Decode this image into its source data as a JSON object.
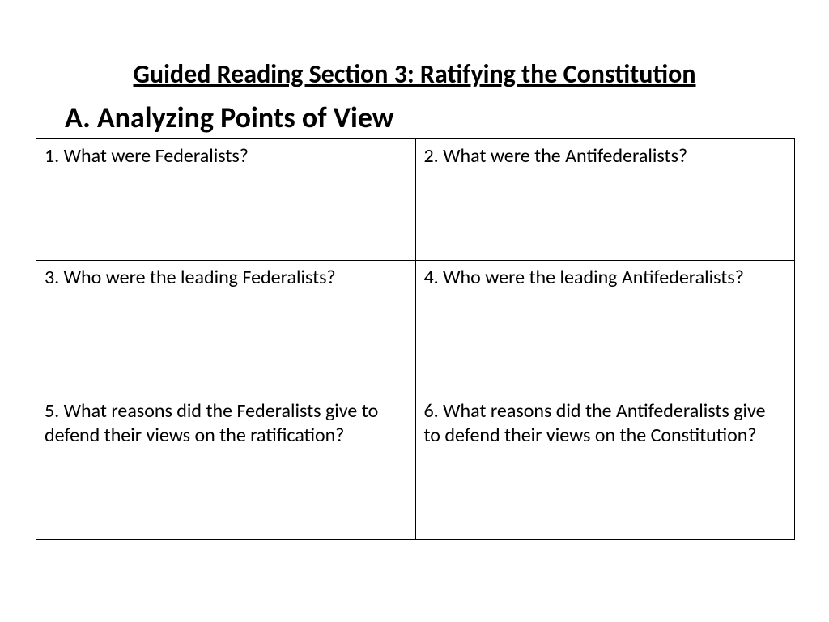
{
  "title": "Guided Reading Section 3:  Ratifying the Constitution",
  "subtitle": "A.  Analyzing Points of View",
  "table": {
    "rows": [
      {
        "left": "1.  What were Federalists?",
        "right": "2.  What were the Antifederalists?"
      },
      {
        "left": "3.  Who were the leading Federalists?",
        "right": "4.  Who were the leading Antifederalists?"
      },
      {
        "left": "5.  What reasons did the Federalists give to defend their views on the ratification?",
        "right": "6.  What reasons did the Antifederalists give to defend their views on the Constitution?"
      }
    ]
  }
}
